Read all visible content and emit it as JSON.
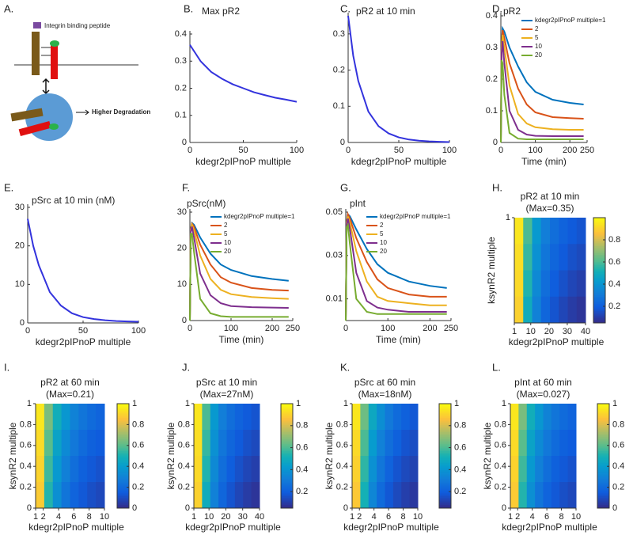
{
  "chart_data": [
    {
      "type": "diagram",
      "label": "A.",
      "annotations": [
        "Integrin binding peptide",
        "Higher Degradation"
      ]
    },
    {
      "type": "line",
      "label": "B.",
      "title": "Max pR2",
      "xlabel": "kdegr2pIPnoP multiple",
      "x": [
        0,
        5,
        10,
        20,
        30,
        40,
        50,
        60,
        70,
        80,
        90,
        100
      ],
      "xlim": [
        0,
        100
      ],
      "xticks": [
        0,
        50,
        100
      ],
      "ylim": [
        0,
        0.4
      ],
      "yticks": [
        0,
        0.1,
        0.2,
        0.3,
        0.4
      ],
      "series": [
        {
          "color": "#3333dd",
          "values": [
            0.36,
            0.33,
            0.3,
            0.26,
            0.235,
            0.215,
            0.2,
            0.185,
            0.175,
            0.165,
            0.158,
            0.15
          ]
        }
      ]
    },
    {
      "type": "line",
      "label": "C.",
      "title": "pR2 at 10 min",
      "xlabel": "kdegr2pIPnoP multiple",
      "x": [
        0,
        5,
        10,
        20,
        30,
        40,
        50,
        60,
        70,
        80,
        90,
        100
      ],
      "xlim": [
        0,
        100
      ],
      "xticks": [
        0,
        50,
        100
      ],
      "ylim": [
        0,
        0.35
      ],
      "yticks": [
        0,
        0.1,
        0.2,
        0.3
      ],
      "series": [
        {
          "color": "#3333dd",
          "values": [
            0.35,
            0.24,
            0.17,
            0.085,
            0.045,
            0.025,
            0.014,
            0.008,
            0.005,
            0.003,
            0.002,
            0.001
          ]
        }
      ]
    },
    {
      "type": "line",
      "label": "D.",
      "title": "pR2",
      "xlabel": "Time (min)",
      "x": [
        0,
        2,
        5,
        10,
        25,
        50,
        75,
        100,
        150,
        200,
        240
      ],
      "xlim": [
        0,
        250
      ],
      "xticks": [
        0,
        100,
        200,
        250
      ],
      "ylim": [
        0,
        0.4
      ],
      "yticks": [
        0,
        0.1,
        0.2,
        0.3,
        0.4
      ],
      "legend": "upper right",
      "series": [
        {
          "name": "kdegr2pIPnoP multiple=1",
          "color": "#0072BD",
          "values": [
            0,
            0.3,
            0.36,
            0.35,
            0.3,
            0.24,
            0.19,
            0.16,
            0.135,
            0.125,
            0.12
          ]
        },
        {
          "name": "2",
          "color": "#D95319",
          "values": [
            0,
            0.3,
            0.355,
            0.33,
            0.25,
            0.17,
            0.12,
            0.095,
            0.08,
            0.077,
            0.075
          ]
        },
        {
          "name": "5",
          "color": "#EDB120",
          "values": [
            0,
            0.29,
            0.34,
            0.3,
            0.18,
            0.09,
            0.06,
            0.048,
            0.042,
            0.04,
            0.04
          ]
        },
        {
          "name": "10",
          "color": "#7E2F8E",
          "values": [
            0,
            0.28,
            0.32,
            0.25,
            0.1,
            0.04,
            0.025,
            0.021,
            0.02,
            0.02,
            0.02
          ]
        },
        {
          "name": "20",
          "color": "#77AC30",
          "values": [
            0,
            0.26,
            0.25,
            0.15,
            0.03,
            0.012,
            0.01,
            0.01,
            0.01,
            0.01,
            0.01
          ]
        }
      ]
    },
    {
      "type": "line",
      "label": "E.",
      "title": "pSrc at 10 min (nM)",
      "xlabel": "kdegr2pIPnoP multiple",
      "x": [
        0,
        5,
        10,
        20,
        30,
        40,
        50,
        60,
        70,
        80,
        90,
        100
      ],
      "xlim": [
        0,
        100
      ],
      "xticks": [
        0,
        50,
        100
      ],
      "ylim": [
        0,
        30
      ],
      "yticks": [
        0,
        10,
        20,
        30
      ],
      "series": [
        {
          "color": "#3333dd",
          "values": [
            27,
            20,
            15,
            8,
            4.5,
            2.5,
            1.5,
            1,
            0.7,
            0.5,
            0.4,
            0.3
          ]
        }
      ]
    },
    {
      "type": "line",
      "label": "F.",
      "title": "pSrc(nM)",
      "xlabel": "Time (min)",
      "x": [
        0,
        2,
        5,
        10,
        25,
        50,
        75,
        100,
        150,
        200,
        240
      ],
      "xlim": [
        0,
        250
      ],
      "xticks": [
        0,
        100,
        200,
        250
      ],
      "ylim": [
        0,
        30
      ],
      "yticks": [
        0,
        10,
        20,
        30
      ],
      "legend": "upper right",
      "series": [
        {
          "name": "kdegr2pIPnoP multiple=1",
          "color": "#0072BD",
          "values": [
            0,
            25,
            27,
            26.5,
            23,
            18.5,
            15.5,
            14,
            12.3,
            11.5,
            11
          ]
        },
        {
          "name": "2",
          "color": "#D95319",
          "values": [
            0,
            25,
            26.8,
            26,
            21,
            15.5,
            12,
            10.5,
            9,
            8.5,
            8.3
          ]
        },
        {
          "name": "5",
          "color": "#EDB120",
          "values": [
            0,
            25,
            26.5,
            25,
            18,
            11.5,
            8.5,
            7.3,
            6.5,
            6.2,
            6
          ]
        },
        {
          "name": "10",
          "color": "#7E2F8E",
          "values": [
            0,
            24.5,
            26,
            23,
            13,
            7,
            4.8,
            4,
            3.7,
            3.6,
            3.5
          ]
        },
        {
          "name": "20",
          "color": "#77AC30",
          "values": [
            0,
            24,
            24,
            19,
            6,
            2,
            1.2,
            1,
            1,
            1,
            1
          ]
        }
      ]
    },
    {
      "type": "line",
      "label": "G.",
      "title": "pInt",
      "xlabel": "Time (min)",
      "x": [
        0,
        2,
        5,
        10,
        25,
        50,
        75,
        100,
        150,
        200,
        240
      ],
      "xlim": [
        0,
        250
      ],
      "xticks": [
        0,
        100,
        200,
        250
      ],
      "ylim": [
        0,
        0.05
      ],
      "yticks": [
        0.01,
        0.03,
        0.05
      ],
      "legend": "upper right",
      "series": [
        {
          "name": "kdegr2pIPnoP multiple=1",
          "color": "#0072BD",
          "values": [
            0,
            0.045,
            0.049,
            0.048,
            0.042,
            0.033,
            0.026,
            0.022,
            0.018,
            0.016,
            0.015
          ]
        },
        {
          "name": "2",
          "color": "#D95319",
          "values": [
            0,
            0.045,
            0.049,
            0.047,
            0.038,
            0.027,
            0.019,
            0.015,
            0.012,
            0.011,
            0.011
          ]
        },
        {
          "name": "5",
          "color": "#EDB120",
          "values": [
            0,
            0.045,
            0.048,
            0.045,
            0.032,
            0.018,
            0.011,
            0.009,
            0.008,
            0.007,
            0.007
          ]
        },
        {
          "name": "10",
          "color": "#7E2F8E",
          "values": [
            0,
            0.044,
            0.047,
            0.042,
            0.022,
            0.009,
            0.006,
            0.005,
            0.004,
            0.004,
            0.004
          ]
        },
        {
          "name": "20",
          "color": "#77AC30",
          "values": [
            0,
            0.043,
            0.044,
            0.035,
            0.01,
            0.004,
            0.003,
            0.003,
            0.003,
            0.003,
            0.003
          ]
        }
      ]
    },
    {
      "type": "heatmap",
      "label": "H.",
      "title": "pR2 at 10 min",
      "subtitle": "(Max=0.35)",
      "xlabel": "kdegr2pIPnoP multiple",
      "ylabel": "ksynR2 multiple",
      "xlim": [
        1,
        40
      ],
      "xticks": [
        1,
        10,
        20,
        30,
        40
      ],
      "ylim": [
        0,
        1
      ],
      "yticks": [
        1
      ],
      "colormap": "parula",
      "clim": [
        0.05,
        1
      ],
      "cticks": [
        0.2,
        0.4,
        0.6,
        0.8
      ],
      "values": [
        [
          0.95,
          0.6,
          0.42,
          0.32,
          0.26,
          0.22,
          0.19,
          0.17
        ],
        [
          0.93,
          0.57,
          0.39,
          0.29,
          0.23,
          0.19,
          0.16,
          0.14
        ],
        [
          0.92,
          0.54,
          0.36,
          0.26,
          0.2,
          0.16,
          0.13,
          0.11
        ],
        [
          0.9,
          0.5,
          0.33,
          0.23,
          0.17,
          0.13,
          0.1,
          0.08
        ]
      ]
    },
    {
      "type": "heatmap",
      "label": "I.",
      "title": "pR2 at 60 min",
      "subtitle": "(Max=0.21)",
      "xlabel": "kdegr2pIPnoP multiple",
      "ylabel": "ksynR2 multiple",
      "xlim": [
        1,
        10
      ],
      "xticks": [
        1,
        2,
        4,
        6,
        8,
        10
      ],
      "ylim": [
        0,
        1
      ],
      "yticks": [
        0,
        0.2,
        0.4,
        0.6,
        0.8,
        1
      ],
      "colormap": "parula",
      "clim": [
        0,
        1
      ],
      "cticks": [
        0,
        0.2,
        0.4,
        0.6,
        0.8,
        1
      ],
      "values": [
        [
          0.95,
          0.65,
          0.48,
          0.38,
          0.3,
          0.25,
          0.21,
          0.18
        ],
        [
          0.92,
          0.6,
          0.43,
          0.33,
          0.26,
          0.21,
          0.17,
          0.15
        ],
        [
          0.9,
          0.56,
          0.39,
          0.29,
          0.22,
          0.17,
          0.14,
          0.12
        ],
        [
          0.88,
          0.52,
          0.35,
          0.25,
          0.18,
          0.14,
          0.11,
          0.09
        ]
      ]
    },
    {
      "type": "heatmap",
      "label": "J.",
      "title": "pSrc at 10 min",
      "subtitle": "(Max=27nM)",
      "xlabel": "kdegr2pIPnoP multiple",
      "ylabel": "ksynR2 multiple",
      "xlim": [
        1,
        40
      ],
      "xticks": [
        1,
        10,
        20,
        30,
        40
      ],
      "ylim": [
        0,
        1
      ],
      "yticks": [
        0,
        0.2,
        0.4,
        0.6,
        0.8,
        1
      ],
      "colormap": "parula",
      "clim": [
        0.05,
        1
      ],
      "cticks": [
        0.2,
        0.4,
        0.6,
        0.8,
        1
      ],
      "values": [
        [
          0.95,
          0.6,
          0.42,
          0.32,
          0.26,
          0.22,
          0.19,
          0.17
        ],
        [
          0.93,
          0.57,
          0.39,
          0.29,
          0.23,
          0.19,
          0.16,
          0.14
        ],
        [
          0.92,
          0.54,
          0.36,
          0.26,
          0.2,
          0.16,
          0.13,
          0.11
        ],
        [
          0.9,
          0.5,
          0.33,
          0.23,
          0.17,
          0.13,
          0.1,
          0.08
        ]
      ]
    },
    {
      "type": "heatmap",
      "label": "K.",
      "title": "pSrc at 60 min",
      "subtitle": "(Max=18nM)",
      "xlabel": "kdegr2pIPnoP multiple",
      "ylabel": "ksynR2 multiple",
      "xlim": [
        1,
        10
      ],
      "xticks": [
        1,
        2,
        4,
        6,
        8,
        10
      ],
      "ylim": [
        0,
        1
      ],
      "yticks": [
        0,
        0.2,
        0.4,
        0.6,
        0.8,
        1
      ],
      "colormap": "parula",
      "clim": [
        0.05,
        1
      ],
      "cticks": [
        0.2,
        0.4,
        0.6,
        0.8,
        1
      ],
      "values": [
        [
          0.95,
          0.65,
          0.48,
          0.38,
          0.3,
          0.25,
          0.21,
          0.18
        ],
        [
          0.92,
          0.6,
          0.43,
          0.33,
          0.26,
          0.21,
          0.17,
          0.15
        ],
        [
          0.9,
          0.56,
          0.39,
          0.29,
          0.22,
          0.17,
          0.14,
          0.12
        ],
        [
          0.88,
          0.52,
          0.35,
          0.25,
          0.18,
          0.14,
          0.11,
          0.09
        ]
      ]
    },
    {
      "type": "heatmap",
      "label": "L.",
      "title": "pInt at 60 min",
      "subtitle": "(Max=0.027)",
      "xlabel": "kdegr2pIPnoP multiple",
      "ylabel": "ksynR2 multiple",
      "xlim": [
        1,
        10
      ],
      "xticks": [
        1,
        2,
        4,
        6,
        8,
        10
      ],
      "ylim": [
        0,
        1
      ],
      "yticks": [
        0,
        0.2,
        0.4,
        0.6,
        0.8,
        1
      ],
      "colormap": "parula",
      "clim": [
        0,
        1
      ],
      "cticks": [
        0,
        0.2,
        0.4,
        0.6,
        0.8,
        1
      ],
      "values": [
        [
          0.95,
          0.65,
          0.48,
          0.38,
          0.3,
          0.25,
          0.21,
          0.18
        ],
        [
          0.92,
          0.6,
          0.43,
          0.33,
          0.26,
          0.21,
          0.17,
          0.15
        ],
        [
          0.9,
          0.56,
          0.39,
          0.29,
          0.22,
          0.17,
          0.14,
          0.12
        ],
        [
          0.88,
          0.52,
          0.35,
          0.25,
          0.18,
          0.14,
          0.11,
          0.09
        ]
      ]
    }
  ]
}
